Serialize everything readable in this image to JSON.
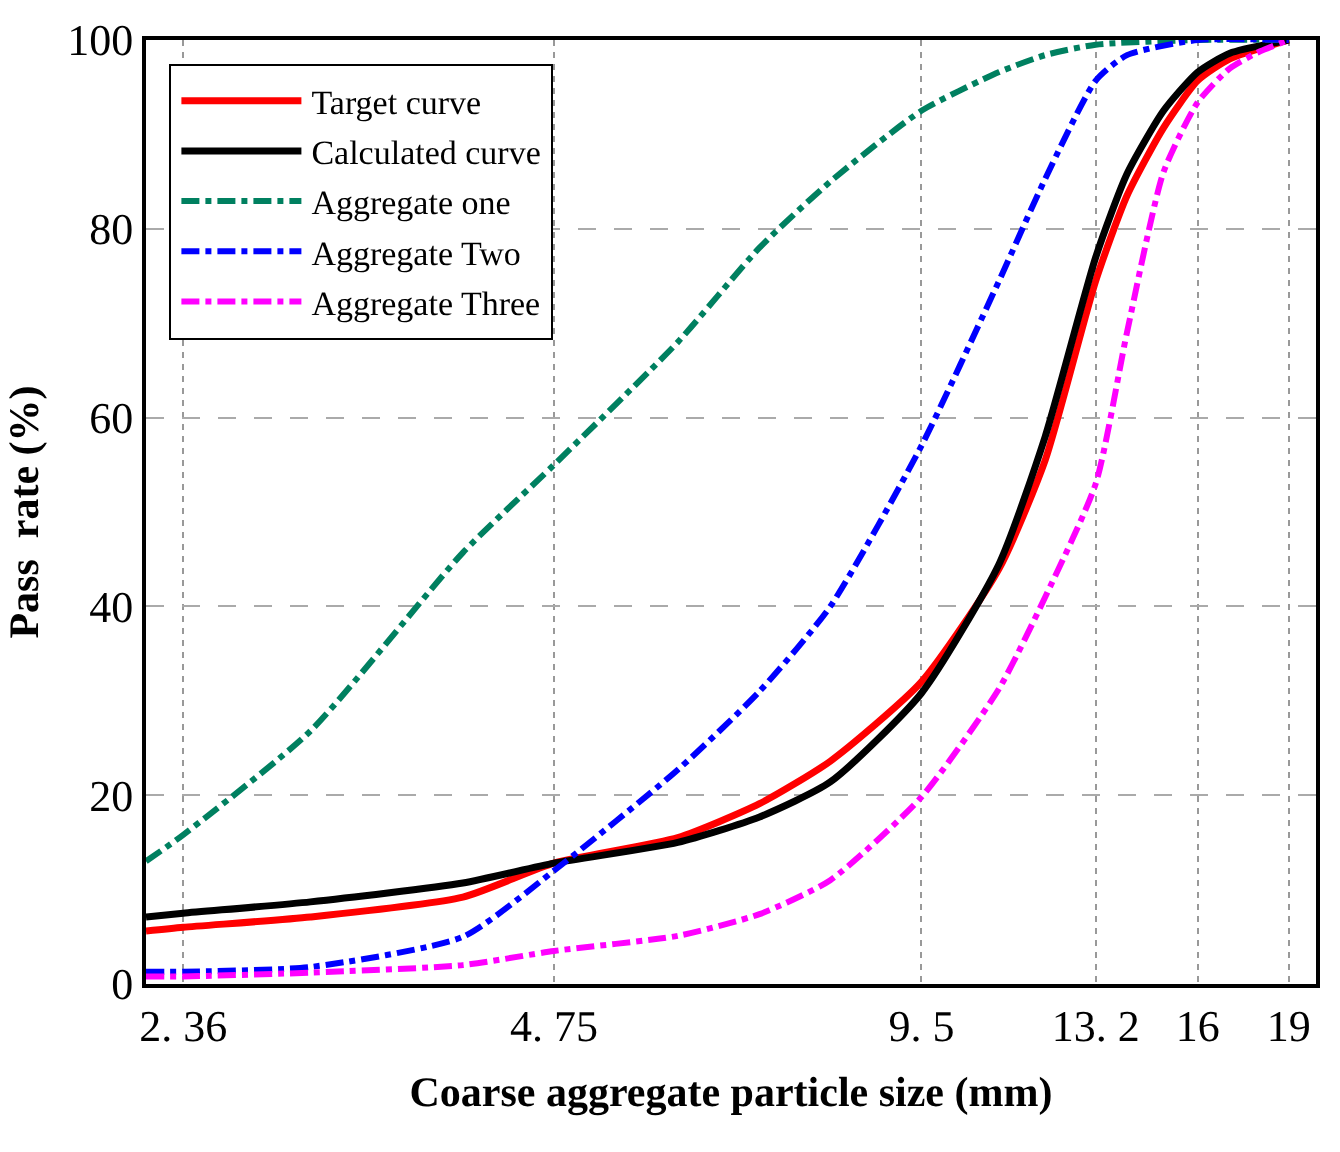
{
  "chart_data": {
    "type": "line",
    "xlabel": "Coarse aggregate particle size (mm)",
    "ylabel": "Pass  rate (%)",
    "log": "x",
    "grid": true,
    "legend": "top left",
    "marker": "none",
    "xlim": [
      2.2,
      20
    ],
    "xticks": [
      {
        "value": 2.36,
        "label": "2. 36"
      },
      {
        "value": 4.75,
        "label": "4. 75"
      },
      {
        "value": 9.5,
        "label": "9. 5"
      },
      {
        "value": 13.2,
        "label": "13. 2"
      },
      16,
      19
    ],
    "ylim": [
      0,
      100
    ],
    "yticks": [
      0,
      20,
      40,
      60,
      80,
      100
    ],
    "series": [
      {
        "name": "Target curve",
        "color": "#ff0000",
        "line_style": "solid",
        "x": [
          2.2,
          2.36,
          3,
          4,
          4.75,
          6,
          7,
          8,
          9.5,
          11,
          12,
          13.2,
          14,
          15,
          16,
          17,
          19
        ],
        "values": [
          5.6,
          6,
          7.1,
          9.2,
          12.8,
          15.5,
          19.1,
          23.6,
          32,
          44,
          55.5,
          74.5,
          83.5,
          90.7,
          95.7,
          98,
          100
        ]
      },
      {
        "name": "Calculated curve",
        "color": "#000000",
        "line_style": "solid",
        "x": [
          2.2,
          2.36,
          3,
          4,
          4.75,
          6,
          7,
          8,
          9.5,
          11,
          12,
          13.2,
          14,
          15,
          16,
          17,
          19
        ],
        "values": [
          7.1,
          7.5,
          8.7,
          10.7,
          12.8,
          15,
          17.7,
          21.4,
          30.8,
          44.5,
          58,
          77,
          85.8,
          92.5,
          96.6,
          98.6,
          100
        ]
      },
      {
        "name": "Aggregate one",
        "color": "#008060",
        "line_style": "dashdot",
        "x": [
          2.2,
          2.36,
          3,
          4,
          4.75,
          6,
          7,
          8,
          9.5,
          11,
          12,
          13.2,
          16,
          19
        ],
        "values": [
          13,
          15.8,
          26.8,
          45.7,
          55,
          68,
          78,
          85,
          92.5,
          96.6,
          98.4,
          99.5,
          100,
          100
        ]
      },
      {
        "name": "Aggregate Two",
        "color": "#0000ff",
        "line_style": "dashdot",
        "x": [
          2.2,
          2.36,
          3,
          4,
          4.75,
          6,
          7,
          8,
          9.5,
          11,
          12,
          13.2,
          14,
          16,
          19
        ],
        "values": [
          1.3,
          1.3,
          1.8,
          5,
          12,
          22.7,
          31,
          40,
          57,
          74.5,
          85.3,
          95.7,
          98.4,
          100,
          100
        ]
      },
      {
        "name": "Aggregate Three",
        "color": "#ff00ff",
        "line_style": "dashdot",
        "x": [
          2.2,
          2.36,
          3,
          4,
          4.75,
          6,
          7,
          8,
          9.5,
          11,
          12,
          13.2,
          14,
          15,
          16,
          17,
          18,
          19
        ],
        "values": [
          0.8,
          0.8,
          1.2,
          2,
          3.5,
          5.1,
          7.4,
          11,
          19.8,
          31.3,
          41,
          53,
          69,
          86,
          93.4,
          97,
          98.8,
          100
        ]
      }
    ]
  }
}
